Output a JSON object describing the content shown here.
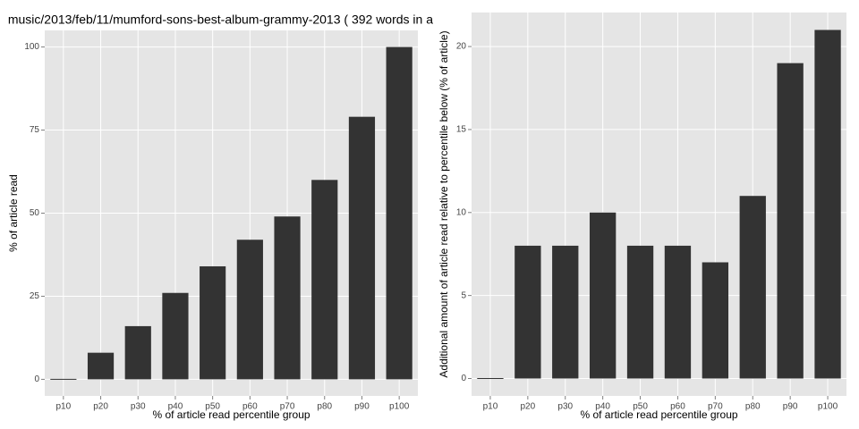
{
  "chart_data": [
    {
      "type": "bar",
      "title": "music/2013/feb/11/mumford-sons-best-album-grammy-2013 ( 392 words in a",
      "x_label": "% of article read percentile group",
      "y_label": "% of article read",
      "categories": [
        "p10",
        "p20",
        "p30",
        "p40",
        "p50",
        "p60",
        "p70",
        "p80",
        "p90",
        "p100"
      ],
      "values": [
        0,
        8,
        16,
        26,
        34,
        42,
        49,
        60,
        79,
        100
      ],
      "color": "#333333",
      "ylim": [
        -5,
        105
      ],
      "yticks": [
        0,
        25,
        50,
        75,
        100
      ],
      "grid": true
    },
    {
      "type": "bar",
      "x_label": "% of article read percentile group",
      "y_label": "Additional amount of article read relative to percentile below (% of article)",
      "categories": [
        "p10",
        "p20",
        "p30",
        "p40",
        "p50",
        "p60",
        "p70",
        "p80",
        "p90",
        "p100"
      ],
      "values": [
        0,
        8,
        8,
        10,
        8,
        8,
        7,
        11,
        19,
        21
      ],
      "color": "#333333",
      "ylim": [
        -1.05,
        22.05
      ],
      "yticks": [
        0,
        5,
        10,
        15,
        20
      ],
      "grid": true
    }
  ]
}
